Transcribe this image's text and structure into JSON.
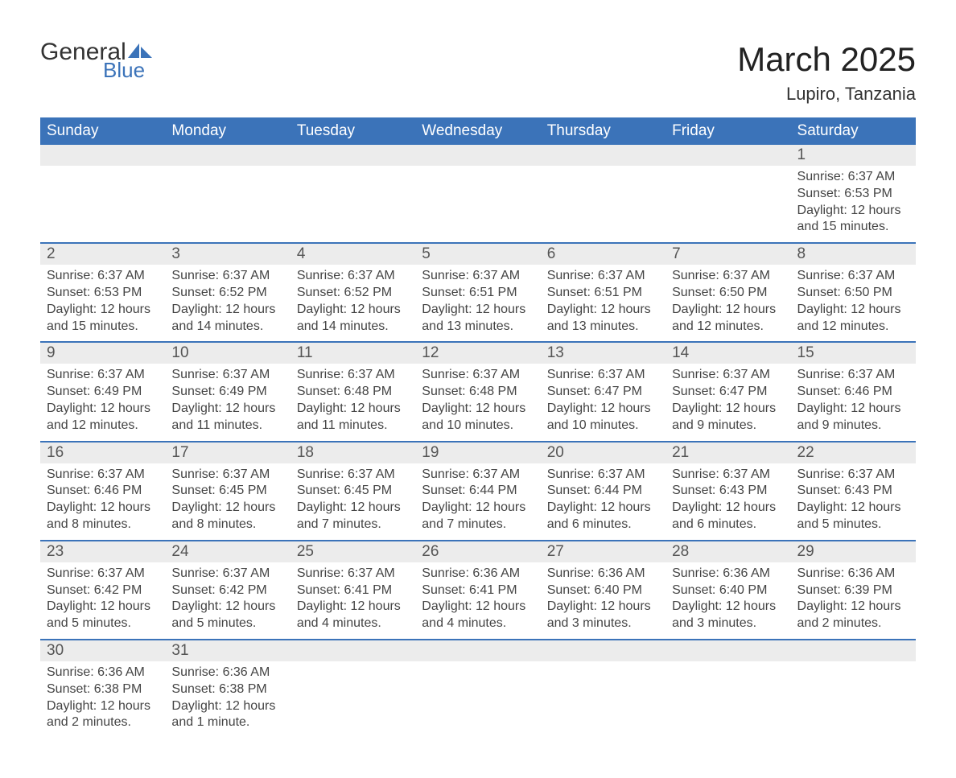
{
  "brand": {
    "name": "General",
    "sub": "Blue",
    "icon_color": "#3b73b9"
  },
  "title": {
    "month": "March 2025",
    "location": "Lupiro, Tanzania"
  },
  "style": {
    "header_bg": "#3b73b9",
    "header_text": "#ffffff",
    "daynum_bg": "#ececec",
    "row_border": "#3b73b9",
    "text_color": "#444444"
  },
  "weekdays": [
    "Sunday",
    "Monday",
    "Tuesday",
    "Wednesday",
    "Thursday",
    "Friday",
    "Saturday"
  ],
  "weeks": [
    [
      null,
      null,
      null,
      null,
      null,
      null,
      {
        "n": "1",
        "sr": "6:37 AM",
        "ss": "6:53 PM",
        "dl": "12 hours and 15 minutes."
      }
    ],
    [
      {
        "n": "2",
        "sr": "6:37 AM",
        "ss": "6:53 PM",
        "dl": "12 hours and 15 minutes."
      },
      {
        "n": "3",
        "sr": "6:37 AM",
        "ss": "6:52 PM",
        "dl": "12 hours and 14 minutes."
      },
      {
        "n": "4",
        "sr": "6:37 AM",
        "ss": "6:52 PM",
        "dl": "12 hours and 14 minutes."
      },
      {
        "n": "5",
        "sr": "6:37 AM",
        "ss": "6:51 PM",
        "dl": "12 hours and 13 minutes."
      },
      {
        "n": "6",
        "sr": "6:37 AM",
        "ss": "6:51 PM",
        "dl": "12 hours and 13 minutes."
      },
      {
        "n": "7",
        "sr": "6:37 AM",
        "ss": "6:50 PM",
        "dl": "12 hours and 12 minutes."
      },
      {
        "n": "8",
        "sr": "6:37 AM",
        "ss": "6:50 PM",
        "dl": "12 hours and 12 minutes."
      }
    ],
    [
      {
        "n": "9",
        "sr": "6:37 AM",
        "ss": "6:49 PM",
        "dl": "12 hours and 12 minutes."
      },
      {
        "n": "10",
        "sr": "6:37 AM",
        "ss": "6:49 PM",
        "dl": "12 hours and 11 minutes."
      },
      {
        "n": "11",
        "sr": "6:37 AM",
        "ss": "6:48 PM",
        "dl": "12 hours and 11 minutes."
      },
      {
        "n": "12",
        "sr": "6:37 AM",
        "ss": "6:48 PM",
        "dl": "12 hours and 10 minutes."
      },
      {
        "n": "13",
        "sr": "6:37 AM",
        "ss": "6:47 PM",
        "dl": "12 hours and 10 minutes."
      },
      {
        "n": "14",
        "sr": "6:37 AM",
        "ss": "6:47 PM",
        "dl": "12 hours and 9 minutes."
      },
      {
        "n": "15",
        "sr": "6:37 AM",
        "ss": "6:46 PM",
        "dl": "12 hours and 9 minutes."
      }
    ],
    [
      {
        "n": "16",
        "sr": "6:37 AM",
        "ss": "6:46 PM",
        "dl": "12 hours and 8 minutes."
      },
      {
        "n": "17",
        "sr": "6:37 AM",
        "ss": "6:45 PM",
        "dl": "12 hours and 8 minutes."
      },
      {
        "n": "18",
        "sr": "6:37 AM",
        "ss": "6:45 PM",
        "dl": "12 hours and 7 minutes."
      },
      {
        "n": "19",
        "sr": "6:37 AM",
        "ss": "6:44 PM",
        "dl": "12 hours and 7 minutes."
      },
      {
        "n": "20",
        "sr": "6:37 AM",
        "ss": "6:44 PM",
        "dl": "12 hours and 6 minutes."
      },
      {
        "n": "21",
        "sr": "6:37 AM",
        "ss": "6:43 PM",
        "dl": "12 hours and 6 minutes."
      },
      {
        "n": "22",
        "sr": "6:37 AM",
        "ss": "6:43 PM",
        "dl": "12 hours and 5 minutes."
      }
    ],
    [
      {
        "n": "23",
        "sr": "6:37 AM",
        "ss": "6:42 PM",
        "dl": "12 hours and 5 minutes."
      },
      {
        "n": "24",
        "sr": "6:37 AM",
        "ss": "6:42 PM",
        "dl": "12 hours and 5 minutes."
      },
      {
        "n": "25",
        "sr": "6:37 AM",
        "ss": "6:41 PM",
        "dl": "12 hours and 4 minutes."
      },
      {
        "n": "26",
        "sr": "6:36 AM",
        "ss": "6:41 PM",
        "dl": "12 hours and 4 minutes."
      },
      {
        "n": "27",
        "sr": "6:36 AM",
        "ss": "6:40 PM",
        "dl": "12 hours and 3 minutes."
      },
      {
        "n": "28",
        "sr": "6:36 AM",
        "ss": "6:40 PM",
        "dl": "12 hours and 3 minutes."
      },
      {
        "n": "29",
        "sr": "6:36 AM",
        "ss": "6:39 PM",
        "dl": "12 hours and 2 minutes."
      }
    ],
    [
      {
        "n": "30",
        "sr": "6:36 AM",
        "ss": "6:38 PM",
        "dl": "12 hours and 2 minutes."
      },
      {
        "n": "31",
        "sr": "6:36 AM",
        "ss": "6:38 PM",
        "dl": "12 hours and 1 minute."
      },
      null,
      null,
      null,
      null,
      null
    ]
  ],
  "labels": {
    "sunrise": "Sunrise: ",
    "sunset": "Sunset: ",
    "daylight": "Daylight: "
  }
}
